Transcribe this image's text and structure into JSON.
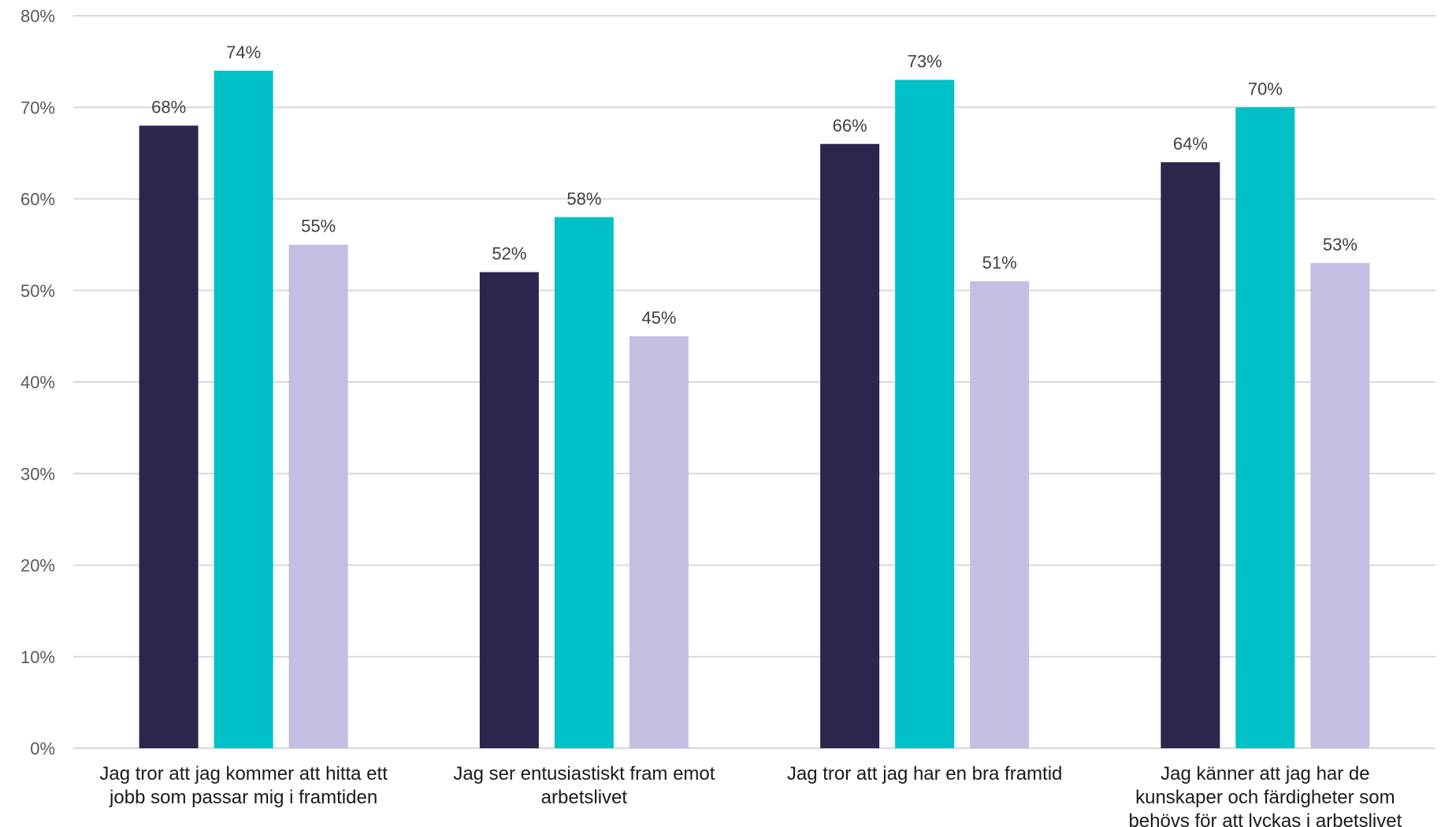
{
  "chart_data": {
    "type": "bar",
    "title": "",
    "xlabel": "",
    "ylabel": "",
    "ylim": [
      0,
      80
    ],
    "yticks": [
      0,
      10,
      20,
      30,
      40,
      50,
      60,
      70,
      80
    ],
    "ytick_labels": [
      "0%",
      "10%",
      "20%",
      "30%",
      "40%",
      "50%",
      "60%",
      "70%",
      "80%"
    ],
    "grid": true,
    "legend": "none",
    "categories": [
      [
        "Jag tror att jag kommer att hitta ett",
        "jobb som passar mig i framtiden"
      ],
      [
        "Jag ser entusiastiskt fram emot",
        "arbetslivet"
      ],
      [
        "Jag tror att jag har en bra framtid"
      ],
      [
        "Jag känner att jag har de",
        "kunskaper och färdigheter som",
        "behövs för att lyckas i arbetslivet"
      ]
    ],
    "series": [
      {
        "color": "#2d254c",
        "values": [
          68,
          52,
          66,
          64
        ],
        "labels": [
          "68%",
          "52%",
          "66%",
          "64%"
        ]
      },
      {
        "color": "#00c0c7",
        "values": [
          74,
          58,
          73,
          70
        ],
        "labels": [
          "74%",
          "58%",
          "73%",
          "70%"
        ]
      },
      {
        "color": "#c3bfe3",
        "values": [
          55,
          45,
          51,
          53
        ],
        "labels": [
          "55%",
          "45%",
          "51%",
          "53%"
        ]
      }
    ]
  }
}
